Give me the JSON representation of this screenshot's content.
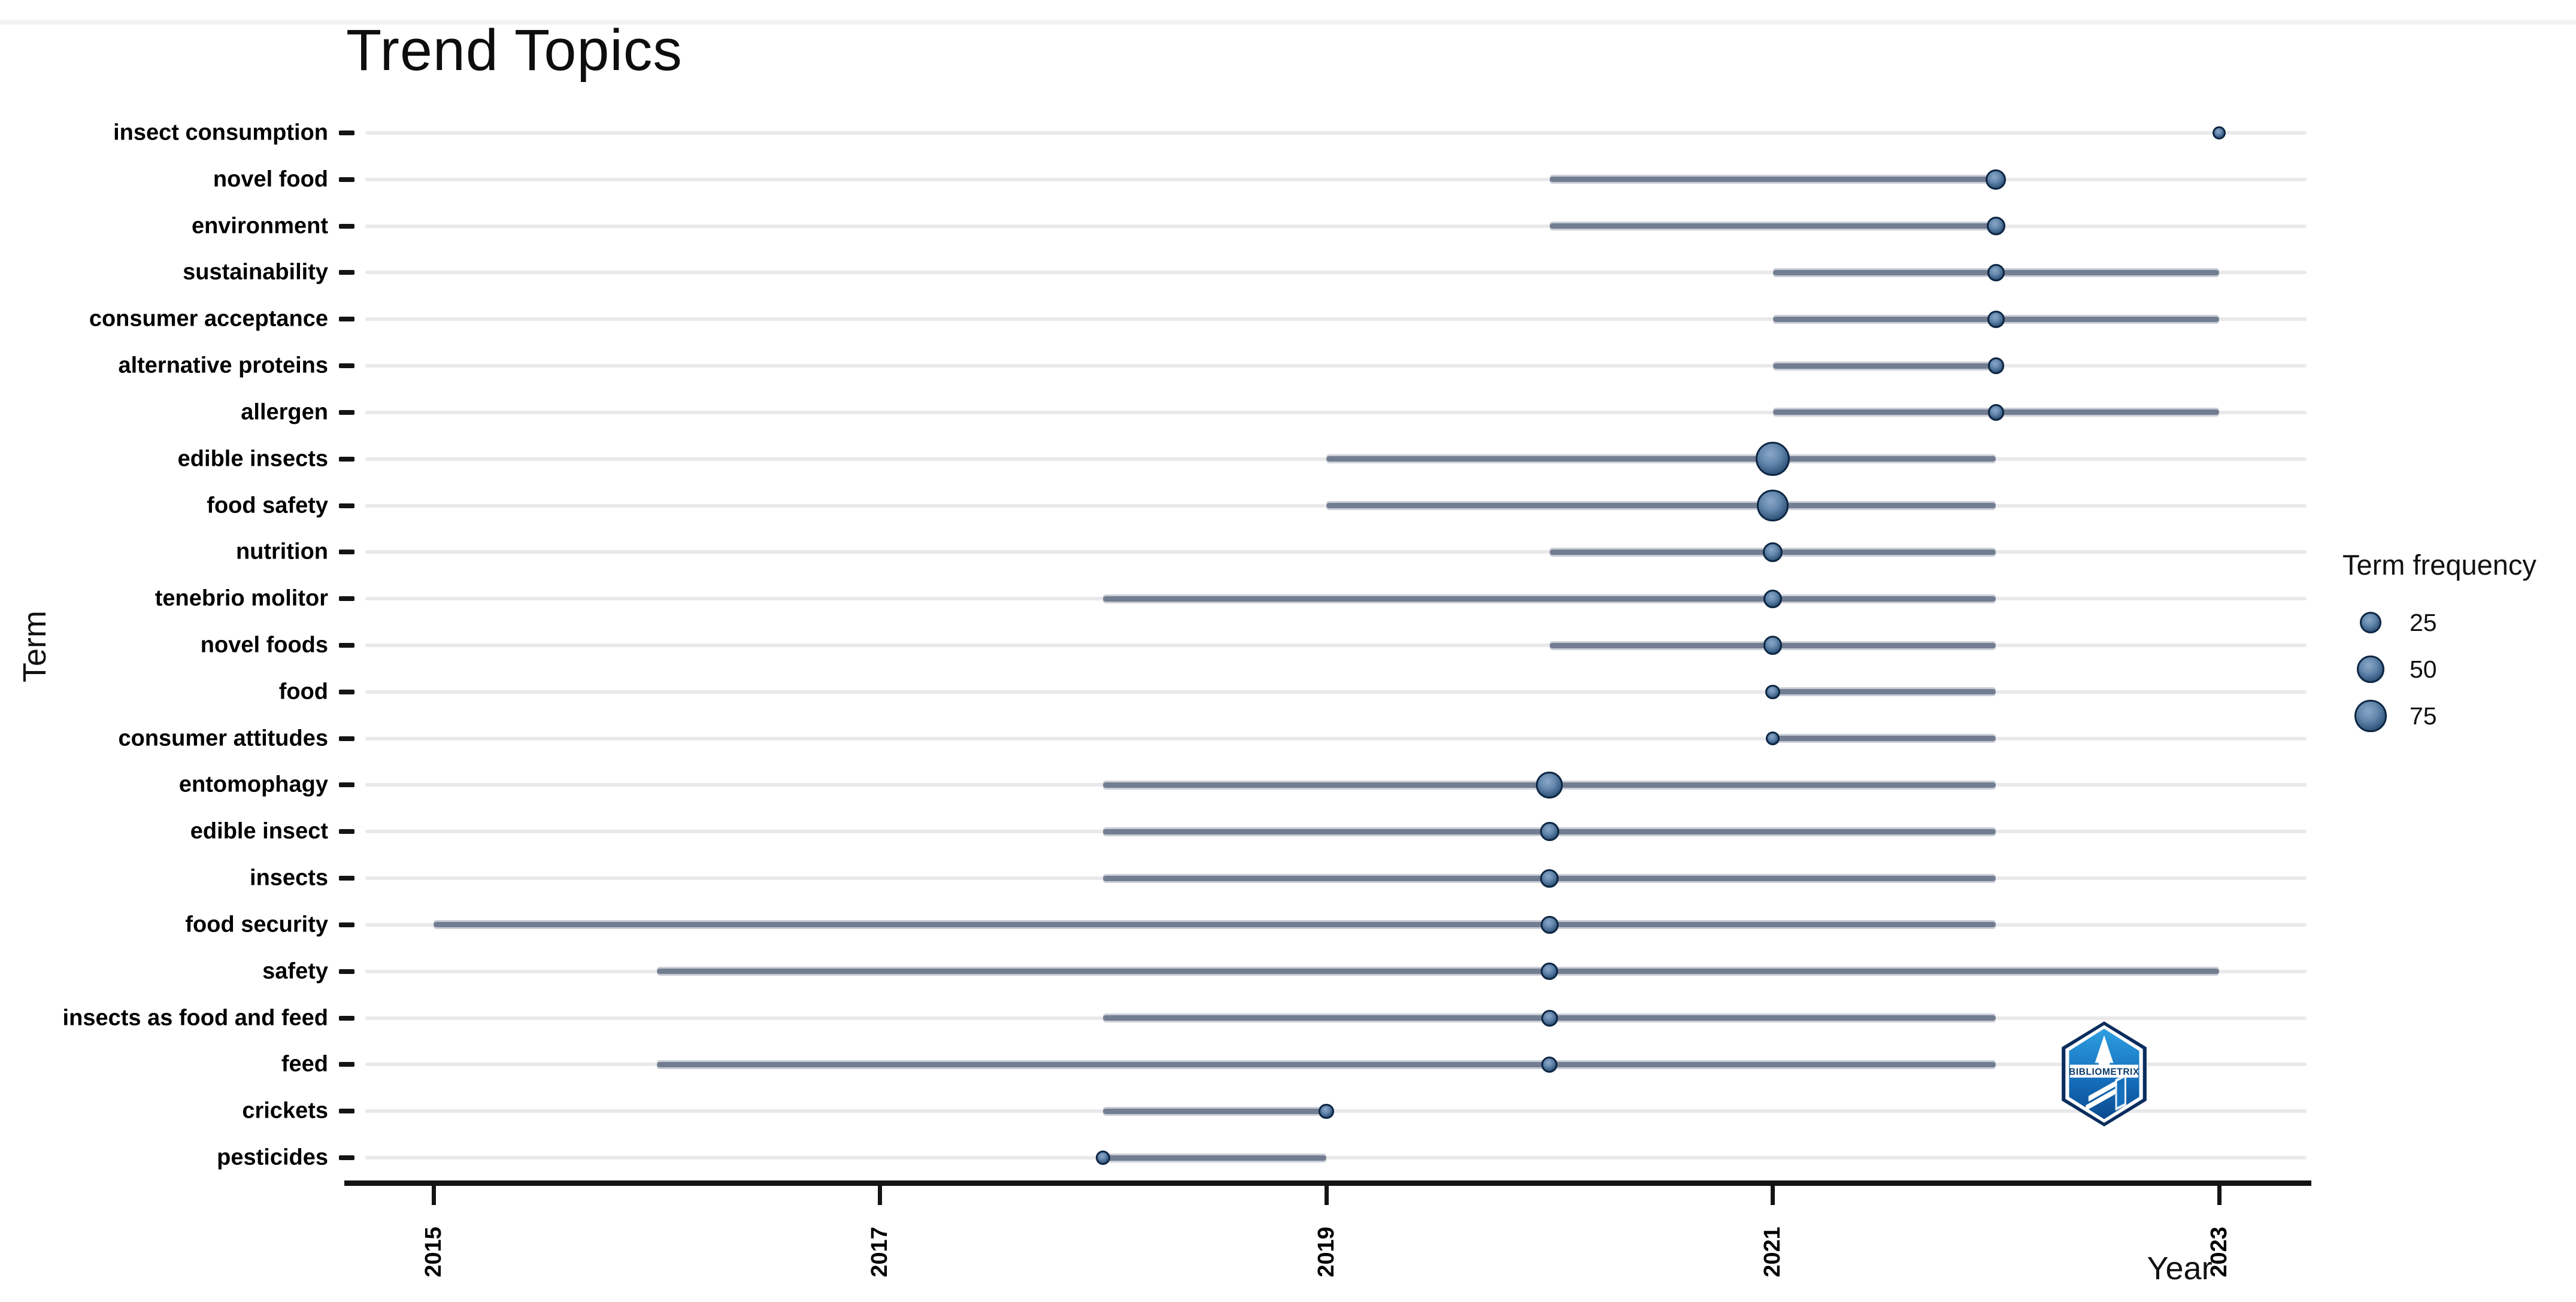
{
  "title": "Trend Topics",
  "axes": {
    "x_label": "Year",
    "y_label": "Term"
  },
  "legend": {
    "title": "Term frequency",
    "items": [
      {
        "label": "25",
        "value": 25
      },
      {
        "label": "50",
        "value": 50
      },
      {
        "label": "75",
        "value": 75
      }
    ]
  },
  "logo": {
    "text": "BIBLIOMETRIX"
  },
  "colors": {
    "background": "#ffffff",
    "title_text": "#0d0d0d",
    "axis_text": "#000000",
    "gridline": "#e9e9eb",
    "range_line": "#737d92",
    "dot_rim": "#0d2643",
    "dot_fill_light": "#8ba7c7",
    "dot_fill_dark": "#16304f",
    "logo_blue_light": "#2f9fe0",
    "logo_blue_dark": "#0b4a8e"
  },
  "chart_data": {
    "type": "scatter",
    "subtype": "dot-range-timeline",
    "title": "Trend Topics",
    "xlabel": "Year",
    "ylabel": "Term",
    "x_ticks": [
      2015,
      2017,
      2019,
      2021,
      2023
    ],
    "xlim": [
      2014.6,
      2023.4
    ],
    "grid": "horizontal-only",
    "legend_position": "right",
    "size_legend": {
      "title": "Term frequency",
      "values": [
        25,
        50,
        75
      ]
    },
    "series": [
      {
        "term": "insect consumption",
        "year_start": 2023,
        "year_peak": 2023,
        "year_end": 2023,
        "frequency": 6
      },
      {
        "term": "novel food",
        "year_start": 2020,
        "year_peak": 2022,
        "year_end": 2022,
        "frequency": 20
      },
      {
        "term": "environment",
        "year_start": 2020,
        "year_peak": 2022,
        "year_end": 2022,
        "frequency": 15
      },
      {
        "term": "sustainability",
        "year_start": 2021,
        "year_peak": 2022,
        "year_end": 2023,
        "frequency": 12
      },
      {
        "term": "consumer acceptance",
        "year_start": 2021,
        "year_peak": 2022,
        "year_end": 2023,
        "frequency": 12
      },
      {
        "term": "alternative proteins",
        "year_start": 2021,
        "year_peak": 2022,
        "year_end": 2022,
        "frequency": 10
      },
      {
        "term": "allergen",
        "year_start": 2021,
        "year_peak": 2022,
        "year_end": 2023,
        "frequency": 10
      },
      {
        "term": "edible insects",
        "year_start": 2019,
        "year_peak": 2021,
        "year_end": 2022,
        "frequency": 90
      },
      {
        "term": "food safety",
        "year_start": 2019,
        "year_peak": 2021,
        "year_end": 2022,
        "frequency": 70
      },
      {
        "term": "nutrition",
        "year_start": 2020,
        "year_peak": 2021,
        "year_end": 2022,
        "frequency": 18
      },
      {
        "term": "tenebrio molitor",
        "year_start": 2018,
        "year_peak": 2021,
        "year_end": 2022,
        "frequency": 15
      },
      {
        "term": "novel foods",
        "year_start": 2020,
        "year_peak": 2021,
        "year_end": 2022,
        "frequency": 15
      },
      {
        "term": "food",
        "year_start": 2021,
        "year_peak": 2021,
        "year_end": 2022,
        "frequency": 7
      },
      {
        "term": "consumer attitudes",
        "year_start": 2021,
        "year_peak": 2021,
        "year_end": 2022,
        "frequency": 6
      },
      {
        "term": "entomophagy",
        "year_start": 2018,
        "year_peak": 2020,
        "year_end": 2022,
        "frequency": 45
      },
      {
        "term": "edible insect",
        "year_start": 2018,
        "year_peak": 2020,
        "year_end": 2022,
        "frequency": 16
      },
      {
        "term": "insects",
        "year_start": 2018,
        "year_peak": 2020,
        "year_end": 2022,
        "frequency": 15
      },
      {
        "term": "food security",
        "year_start": 2015,
        "year_peak": 2020,
        "year_end": 2022,
        "frequency": 14
      },
      {
        "term": "safety",
        "year_start": 2016,
        "year_peak": 2020,
        "year_end": 2023,
        "frequency": 12
      },
      {
        "term": "insects as food and feed",
        "year_start": 2018,
        "year_peak": 2020,
        "year_end": 2022,
        "frequency": 11
      },
      {
        "term": "feed",
        "year_start": 2016,
        "year_peak": 2020,
        "year_end": 2022,
        "frequency": 10
      },
      {
        "term": "crickets",
        "year_start": 2018,
        "year_peak": 2019,
        "year_end": 2019,
        "frequency": 8
      },
      {
        "term": "pesticides",
        "year_start": 2018,
        "year_peak": 2018,
        "year_end": 2019,
        "frequency": 7
      }
    ]
  }
}
